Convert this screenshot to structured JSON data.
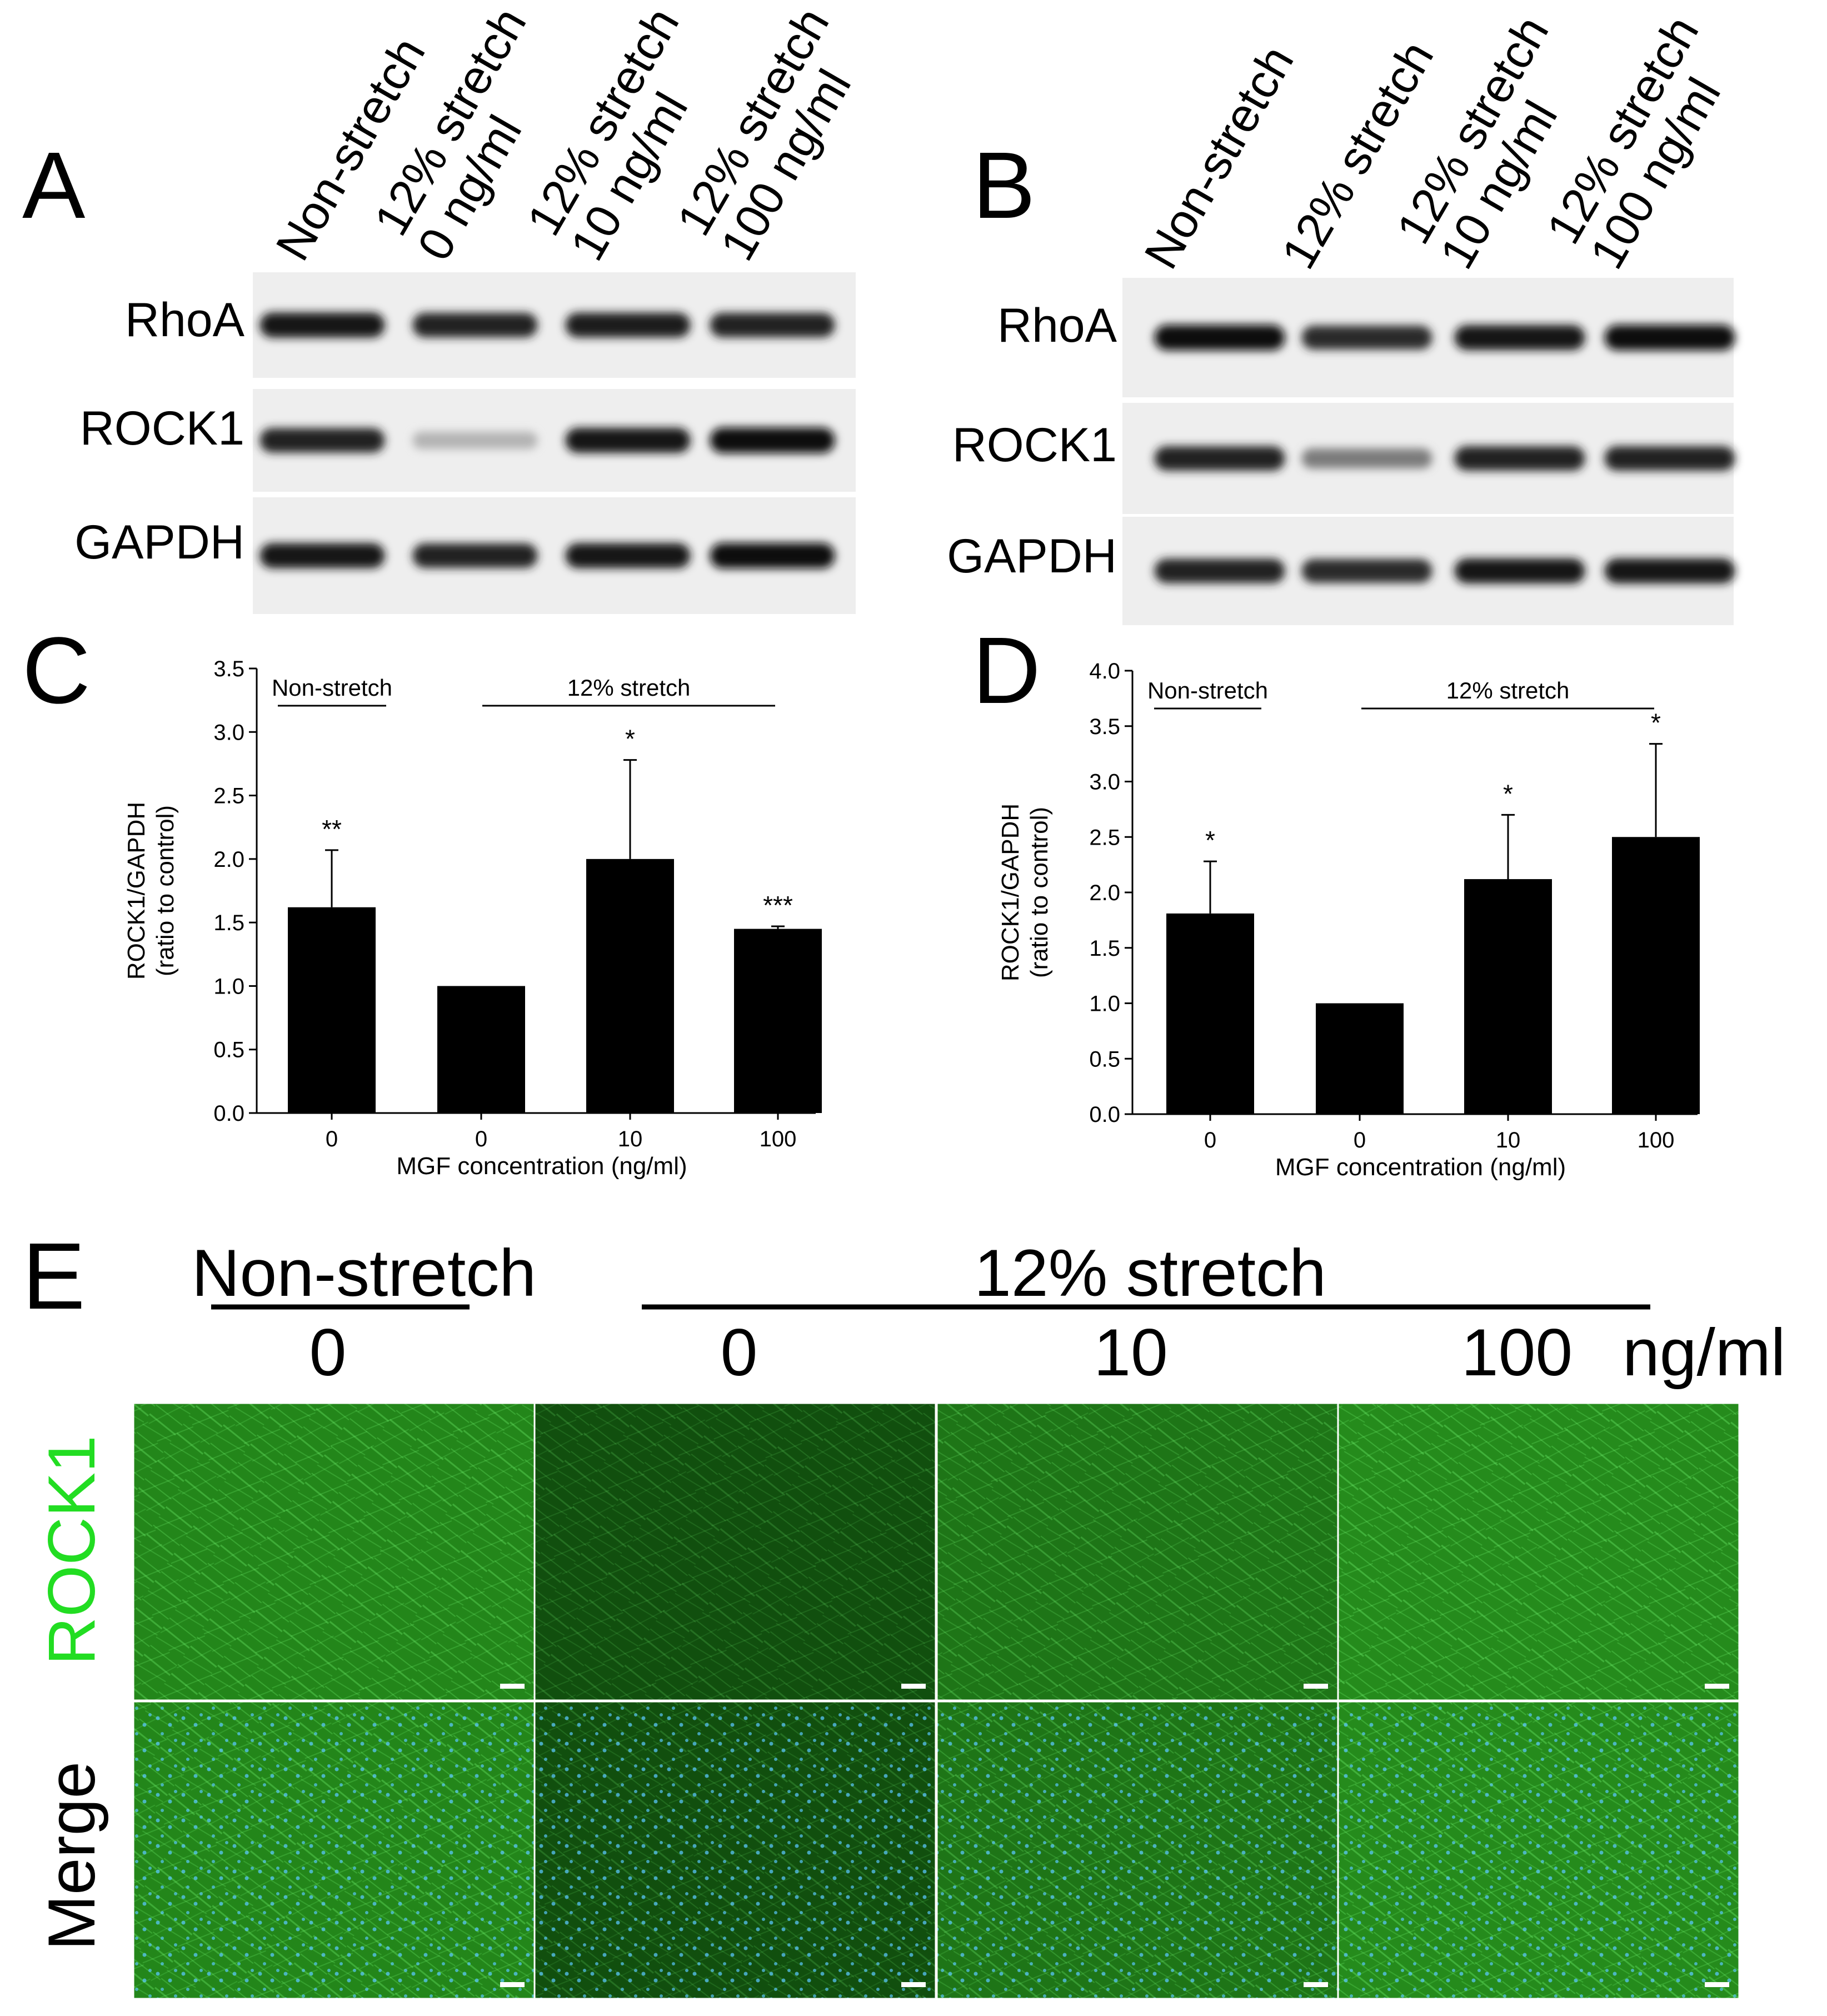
{
  "panel_labels": [
    "A",
    "B",
    "C",
    "D",
    "E"
  ],
  "blot_A": {
    "lanes": [
      "Non-stretch",
      [
        "12% stretch",
        "0 ng/ml"
      ],
      [
        "12% stretch",
        "10 ng/ml"
      ],
      [
        "12% stretch",
        "100 ng/ml"
      ]
    ],
    "proteins": [
      "RhoA",
      "ROCK1",
      "GAPDH"
    ],
    "band_intensity": {
      "RhoA": [
        0.95,
        0.9,
        0.92,
        0.9
      ],
      "ROCK1": [
        0.9,
        0.25,
        0.95,
        1.0
      ],
      "GAPDH": [
        0.95,
        0.9,
        0.95,
        1.0
      ]
    }
  },
  "blot_B": {
    "lanes": [
      "Non-stretch",
      "12% stretch",
      [
        "12% stretch",
        "10 ng/ml"
      ],
      [
        "12% stretch",
        "100 ng/ml"
      ]
    ],
    "proteins": [
      "RhoA",
      "ROCK1",
      "GAPDH"
    ],
    "band_intensity": {
      "RhoA": [
        1.0,
        0.85,
        0.95,
        1.0
      ],
      "ROCK1": [
        0.9,
        0.5,
        0.9,
        0.9
      ],
      "GAPDH": [
        0.9,
        0.85,
        0.95,
        0.95
      ]
    }
  },
  "chart_data": [
    {
      "panel": "C",
      "type": "bar",
      "categories": [
        "0",
        "0",
        "10",
        "100"
      ],
      "values": [
        1.62,
        1.0,
        2.0,
        1.45
      ],
      "error": [
        0.45,
        0,
        0.78,
        0.02
      ],
      "significance": [
        "**",
        "",
        "*",
        "***"
      ],
      "xlabel": "MGF concentration (ng/ml)",
      "ylabel": [
        "ROCK1/GAPDH",
        "(ratio to control)"
      ],
      "ylim": [
        0,
        3.5
      ],
      "yticks": [
        "0.0",
        "0.5",
        "1.0",
        "1.5",
        "2.0",
        "2.5",
        "3.0",
        "3.5"
      ],
      "group_labels": [
        "Non-stretch",
        "12% stretch"
      ]
    },
    {
      "panel": "D",
      "type": "bar",
      "categories": [
        "0",
        "0",
        "10",
        "100"
      ],
      "values": [
        1.81,
        1.0,
        2.12,
        2.5
      ],
      "error": [
        0.47,
        0,
        0.58,
        0.84
      ],
      "significance": [
        "*",
        "",
        "*",
        "*"
      ],
      "xlabel": "MGF concentration (ng/ml)",
      "ylabel": [
        "ROCK1/GAPDH",
        "(ratio to control)"
      ],
      "ylim": [
        0,
        4.0
      ],
      "yticks": [
        "0.0",
        "0.5",
        "1.0",
        "1.5",
        "2.0",
        "2.5",
        "3.0",
        "3.5",
        "4.0"
      ],
      "group_labels": [
        "Non-stretch",
        "12% stretch"
      ]
    }
  ],
  "panel_E": {
    "group_headers": [
      "Non-stretch",
      "12% stretch"
    ],
    "concentrations": [
      "0",
      "0",
      "10",
      "100"
    ],
    "unit": "ng/ml",
    "row_labels": [
      "ROCK1",
      "Merge"
    ],
    "row_label_colors": [
      "#22dd22",
      "#000000"
    ],
    "green_intensity": [
      0.85,
      0.35,
      0.7,
      0.9
    ]
  }
}
